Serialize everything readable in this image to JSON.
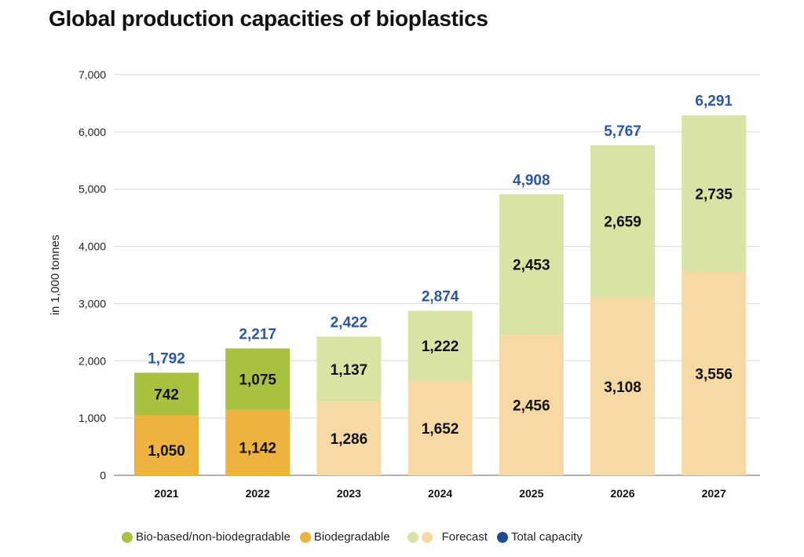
{
  "title": "Global production capacities of bioplastics",
  "colors": {
    "bio_based": "#a9c13f",
    "biodegradable": "#eeb33c",
    "forecast_bio_based": "#d9e3a3",
    "forecast_biodegradable": "#f7d9a3",
    "total": "#2a56a4",
    "grid": "#d9d9d9"
  },
  "legend": [
    {
      "label": "Bio-based/non-biodegradable",
      "colors": [
        "#a9c13f"
      ]
    },
    {
      "label": "Biodegradable",
      "colors": [
        "#eeb33c"
      ]
    },
    {
      "label": "Forecast",
      "colors": [
        "#d9e3a3",
        "#f7d9a3"
      ]
    },
    {
      "label": "Total capacity",
      "colors": [
        "#1e4a9a"
      ]
    }
  ],
  "chart_data": {
    "type": "bar",
    "stacked": true,
    "title": "Global production capacities of bioplastics",
    "xlabel": "",
    "ylabel": "in 1,000 tonnes",
    "ylim": [
      0,
      7000
    ],
    "yticks": [
      0,
      1000,
      2000,
      3000,
      4000,
      5000,
      6000,
      7000
    ],
    "ytick_labels": [
      "0",
      "1,000",
      "2,000",
      "3,000",
      "4,000",
      "5,000",
      "6,000",
      "7,000"
    ],
    "grid": true,
    "legend_position": "bottom",
    "categories": [
      "2021",
      "2022",
      "2023",
      "2024",
      "2025",
      "2026",
      "2027"
    ],
    "forecast_from": "2023",
    "series": [
      {
        "name": "Biodegradable",
        "values": [
          1050,
          1142,
          1286,
          1652,
          2456,
          3108,
          3556
        ],
        "labels": [
          "1,050",
          "1,142",
          "1,286",
          "1,652",
          "2,456",
          "3,108",
          "3,556"
        ]
      },
      {
        "name": "Bio-based/non-biodegradable",
        "values": [
          742,
          1075,
          1137,
          1222,
          2453,
          2659,
          2735
        ],
        "labels": [
          "742",
          "1,075",
          "1,137",
          "1,222",
          "2,453",
          "2,659",
          "2,735"
        ]
      }
    ],
    "totals": [
      1792,
      2217,
      2422,
      2874,
      4908,
      5767,
      6291
    ],
    "total_labels": [
      "1,792",
      "2,217",
      "2,422",
      "2,874",
      "4,908",
      "5,767",
      "6,291"
    ]
  }
}
